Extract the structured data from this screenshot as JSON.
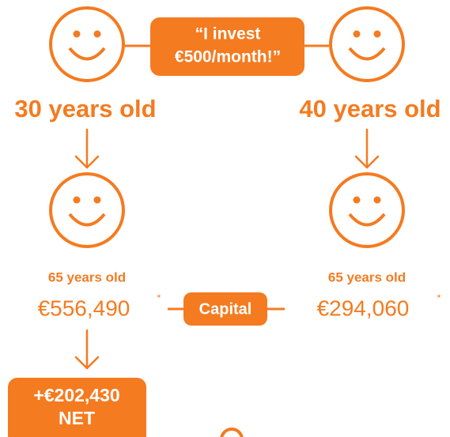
{
  "quote": [
    "“I invest",
    "€500/month!”"
  ],
  "left": {
    "age": "30 years old",
    "later_age": "65 years old",
    "capital": "€556,490",
    "capital_note": "*",
    "gain": [
      "+€202,430",
      "NET"
    ]
  },
  "center_label": "Capital",
  "right": {
    "age": "40 years old",
    "later_age": "65 years old",
    "capital": "€294,060",
    "capital_note": "*"
  }
}
